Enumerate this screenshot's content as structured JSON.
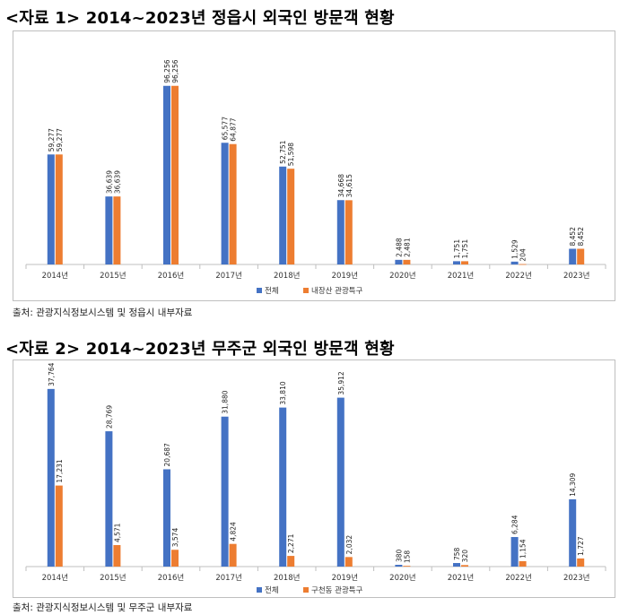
{
  "colors": {
    "series1": "#4472C4",
    "series2": "#ED7D31",
    "axis": "#bfbfbf"
  },
  "chart_data": [
    {
      "type": "bar",
      "title": "<자료 1> 2014~2023년 정읍시 외국인 방문객 현황",
      "source": "출처: 관광지식정보시스템 및 정읍시 내부자료",
      "categories": [
        "2014년",
        "2015년",
        "2016년",
        "2017년",
        "2018년",
        "2019년",
        "2020년",
        "2021년",
        "2022년",
        "2023년"
      ],
      "series": [
        {
          "name": "전체",
          "values": [
            59277,
            36639,
            96256,
            65577,
            52751,
            34668,
            2488,
            1751,
            1529,
            8452
          ],
          "labels": [
            "59,277",
            "36,639",
            "96,256",
            "65,577",
            "52,751",
            "34,668",
            "2,488",
            "1,751",
            "1,529",
            "8,452"
          ]
        },
        {
          "name": "내장산 관광특구",
          "values": [
            59277,
            36639,
            96256,
            64877,
            51598,
            34615,
            2481,
            1751,
            204,
            8452
          ],
          "labels": [
            "59,277",
            "36,639",
            "96,256",
            "64,877",
            "51,598",
            "34,615",
            "2,481",
            "1,751",
            "204",
            "8,452"
          ]
        }
      ],
      "ylim": [
        0,
        100000
      ],
      "grid": false,
      "legend": "bottom-center"
    },
    {
      "type": "bar",
      "title": "<자료 2> 2014~2023년 무주군 외국인 방문객 현황",
      "source": "출처: 관광지식정보시스템 및 무주군 내부자료",
      "categories": [
        "2014년",
        "2015년",
        "2016년",
        "2017년",
        "2018년",
        "2019년",
        "2020년",
        "2021년",
        "2022년",
        "2023년"
      ],
      "series": [
        {
          "name": "전체",
          "values": [
            37764,
            28769,
            20687,
            31880,
            33810,
            35912,
            380,
            758,
            6284,
            14309
          ],
          "labels": [
            "37,764",
            "28,769",
            "20,687",
            "31,880",
            "33,810",
            "35,912",
            "380",
            "758",
            "6,284",
            "14,309"
          ]
        },
        {
          "name": "구천동 관광특구",
          "values": [
            17231,
            4571,
            3574,
            4824,
            2271,
            2032,
            158,
            320,
            1154,
            1727
          ],
          "labels": [
            "17,231",
            "4,571",
            "3,574",
            "4,824",
            "2,271",
            "2,032",
            "158",
            "320",
            "1,154",
            "1,727"
          ]
        }
      ],
      "ylim": [
        0,
        38500
      ],
      "grid": false,
      "legend": "bottom-center"
    }
  ]
}
